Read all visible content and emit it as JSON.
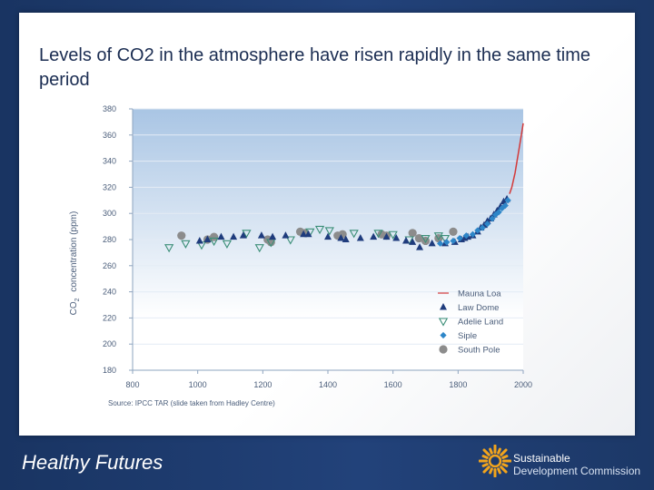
{
  "slide": {
    "title": "Levels of CO2 in the atmosphere have risen rapidly in the same time period",
    "source": "Source: IPCC TAR (slide taken from Hadley Centre)"
  },
  "footer": {
    "left_logo_text": "Healthy Futures",
    "org_line1": "Sustainable",
    "org_line2": "Development Commission"
  },
  "colors": {
    "plot_bg_top": "#a9c5e4",
    "plot_bg_bottom": "#ffffff",
    "law_dome": "#1f3c7d",
    "adelie": "#3c8f78",
    "siple": "#2e86c8",
    "south_pole": "#8c8c8c",
    "mauna_loa": "#d33a3a"
  },
  "chart_data": {
    "type": "scatter",
    "ylabel_main": "concentration (ppm)",
    "ylabel_prefix": "CO",
    "ylabel_sub": "2",
    "xlim": [
      800,
      2000
    ],
    "ylim": [
      180,
      380
    ],
    "x_ticks": [
      "800",
      "1000",
      "1200",
      "1400",
      "1600",
      "1800",
      "2000"
    ],
    "y_ticks": [
      "180",
      "200",
      "220",
      "240",
      "260",
      "280",
      "300",
      "320",
      "340",
      "360",
      "380"
    ],
    "legend_position": "lower-right",
    "series": [
      {
        "name": "Mauna Loa",
        "marker": "line",
        "points": [
          [
            1958,
            315
          ],
          [
            1965,
            320
          ],
          [
            1975,
            331
          ],
          [
            1985,
            346
          ],
          [
            1995,
            361
          ],
          [
            2000,
            369
          ]
        ]
      },
      {
        "name": "Law Dome",
        "marker": "triangle-up",
        "points": [
          [
            1006,
            279
          ],
          [
            1030,
            280
          ],
          [
            1072,
            282
          ],
          [
            1110,
            282
          ],
          [
            1140,
            283
          ],
          [
            1196,
            283
          ],
          [
            1230,
            282
          ],
          [
            1270,
            283
          ],
          [
            1325,
            284
          ],
          [
            1340,
            284
          ],
          [
            1400,
            282
          ],
          [
            1440,
            281
          ],
          [
            1455,
            280
          ],
          [
            1500,
            281
          ],
          [
            1540,
            282
          ],
          [
            1580,
            282
          ],
          [
            1610,
            281
          ],
          [
            1640,
            279
          ],
          [
            1660,
            278
          ],
          [
            1682,
            274
          ],
          [
            1720,
            277
          ],
          [
            1760,
            277
          ],
          [
            1790,
            278
          ],
          [
            1810,
            280
          ],
          [
            1820,
            281
          ],
          [
            1830,
            282
          ],
          [
            1845,
            283
          ],
          [
            1860,
            286
          ],
          [
            1870,
            289
          ],
          [
            1880,
            291
          ],
          [
            1890,
            294
          ],
          [
            1900,
            296
          ],
          [
            1910,
            299
          ],
          [
            1920,
            302
          ],
          [
            1930,
            305
          ],
          [
            1940,
            309
          ],
          [
            1950,
            311
          ]
        ]
      },
      {
        "name": "Adelie Land",
        "marker": "triangle-down",
        "points": [
          [
            912,
            274
          ],
          [
            963,
            277
          ],
          [
            1012,
            276
          ],
          [
            1050,
            279
          ],
          [
            1090,
            277
          ],
          [
            1150,
            285
          ],
          [
            1190,
            274
          ],
          [
            1225,
            278
          ],
          [
            1285,
            280
          ],
          [
            1345,
            286
          ],
          [
            1375,
            288
          ],
          [
            1405,
            287
          ],
          [
            1480,
            285
          ],
          [
            1555,
            285
          ],
          [
            1600,
            284
          ],
          [
            1650,
            280
          ],
          [
            1700,
            281
          ],
          [
            1740,
            283
          ],
          [
            1760,
            281
          ]
        ]
      },
      {
        "name": "Siple",
        "marker": "diamond",
        "points": [
          [
            1745,
            277
          ],
          [
            1765,
            278
          ],
          [
            1785,
            279
          ],
          [
            1805,
            281
          ],
          [
            1825,
            283
          ],
          [
            1845,
            284
          ],
          [
            1860,
            287
          ],
          [
            1875,
            289
          ],
          [
            1890,
            292
          ],
          [
            1905,
            296
          ],
          [
            1915,
            299
          ],
          [
            1925,
            301
          ],
          [
            1935,
            304
          ],
          [
            1945,
            306
          ],
          [
            1953,
            310
          ]
        ]
      },
      {
        "name": "South Pole",
        "marker": "circle",
        "points": [
          [
            950,
            283
          ],
          [
            1030,
            280
          ],
          [
            1050,
            282
          ],
          [
            1215,
            280
          ],
          [
            1225,
            278
          ],
          [
            1315,
            286
          ],
          [
            1330,
            285
          ],
          [
            1430,
            283
          ],
          [
            1445,
            284
          ],
          [
            1565,
            284
          ],
          [
            1580,
            283
          ],
          [
            1660,
            285
          ],
          [
            1680,
            281
          ],
          [
            1700,
            279
          ],
          [
            1740,
            281
          ],
          [
            1785,
            286
          ]
        ]
      }
    ]
  }
}
